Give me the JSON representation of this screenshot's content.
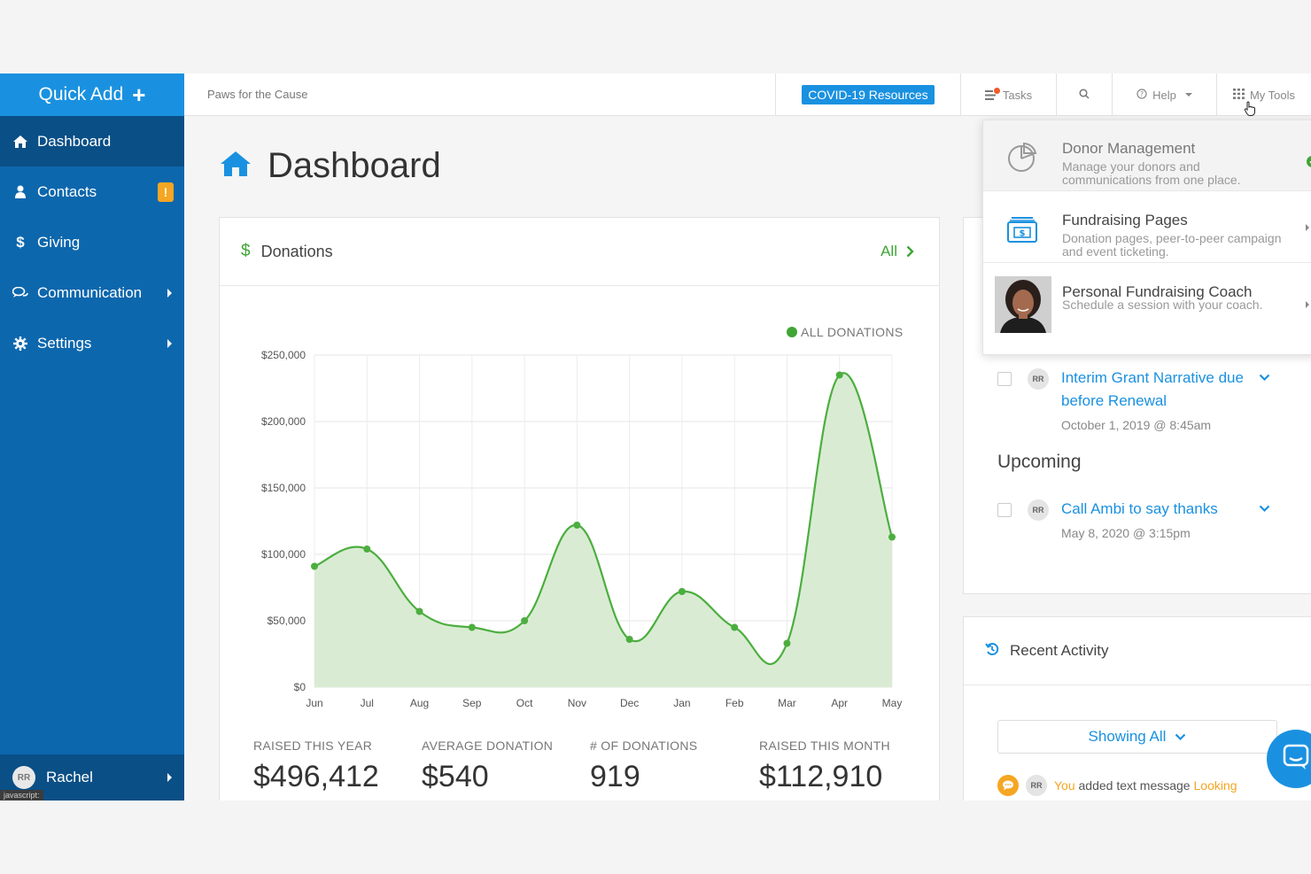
{
  "sidebar": {
    "quick_add_label": "Quick Add",
    "items": [
      {
        "label": "Dashboard",
        "icon": "home-icon",
        "active": true
      },
      {
        "label": "Contacts",
        "icon": "user-icon",
        "badge": "!"
      },
      {
        "label": "Giving",
        "icon": "dollar-icon"
      },
      {
        "label": "Communication",
        "icon": "chat-icon"
      },
      {
        "label": "Settings",
        "icon": "gear-icon"
      }
    ],
    "user": {
      "initials": "RR",
      "name": "Rachel"
    },
    "status_text": "javascript:"
  },
  "topbar": {
    "org_name": "Paws for the Cause",
    "covid_label": "COVID-19 Resources",
    "tasks_label": "Tasks",
    "help_label": "Help",
    "my_tools_label": "My Tools"
  },
  "main": {
    "title": "Dashboard"
  },
  "donations": {
    "header": "Donations",
    "all_link": "All",
    "legend": "ALL DONATIONS",
    "stats": [
      {
        "label": "RAISED THIS YEAR",
        "value": "$496,412"
      },
      {
        "label": "AVERAGE DONATION",
        "value": "$540"
      },
      {
        "label": "# OF DONATIONS",
        "value": "919"
      },
      {
        "label": "RAISED THIS MONTH",
        "value": "$112,910"
      }
    ]
  },
  "chart_data": {
    "type": "area",
    "categories": [
      "Jun",
      "Jul",
      "Aug",
      "Sep",
      "Oct",
      "Nov",
      "Dec",
      "Jan",
      "Feb",
      "Mar",
      "Apr",
      "May"
    ],
    "series": [
      {
        "name": "ALL DONATIONS",
        "values": [
          91000,
          104000,
          57000,
          45000,
          50000,
          122000,
          36000,
          72000,
          45000,
          33000,
          235000,
          113000
        ]
      }
    ],
    "ylim": [
      0,
      250000
    ],
    "yticks": [
      "$0",
      "$50,000",
      "$100,000",
      "$150,000",
      "$200,000",
      "$250,000"
    ],
    "grid": true,
    "legend_position": "top-right",
    "colors": {
      "line": "#4cae3f",
      "fill": "#d9ecd3"
    }
  },
  "tasks_panel": {
    "tasks": [
      {
        "initials": "RR",
        "title": "Interim Grant Narrative due before Renewal",
        "date": "October 1, 2019 @ 8:45am"
      }
    ],
    "upcoming_heading": "Upcoming",
    "upcoming": [
      {
        "initials": "RR",
        "title": "Call Ambi to say thanks",
        "date": "May 8, 2020 @ 3:15pm"
      }
    ]
  },
  "recent_activity": {
    "header": "Recent Activity",
    "filter_label": "Showing All",
    "items": [
      {
        "initials": "RR",
        "actor": "You",
        "text": "added text message",
        "link": "Looking"
      }
    ]
  },
  "my_tools_menu": [
    {
      "title": "Donor Management",
      "desc": "Manage your donors and communications from one place.",
      "icon": "pie-chart-icon"
    },
    {
      "title": "Fundraising Pages",
      "desc": "Donation pages, peer-to-peer campaign and event ticketing.",
      "icon": "donation-page-icon"
    },
    {
      "title": "Personal Fundraising Coach",
      "desc": "Schedule a session with your coach.",
      "icon": "coach-photo"
    }
  ],
  "colors": {
    "brand_blue": "#1a91e0",
    "sidebar_blue": "#0d67ad",
    "green": "#3fa535",
    "orange": "#f5a623"
  }
}
